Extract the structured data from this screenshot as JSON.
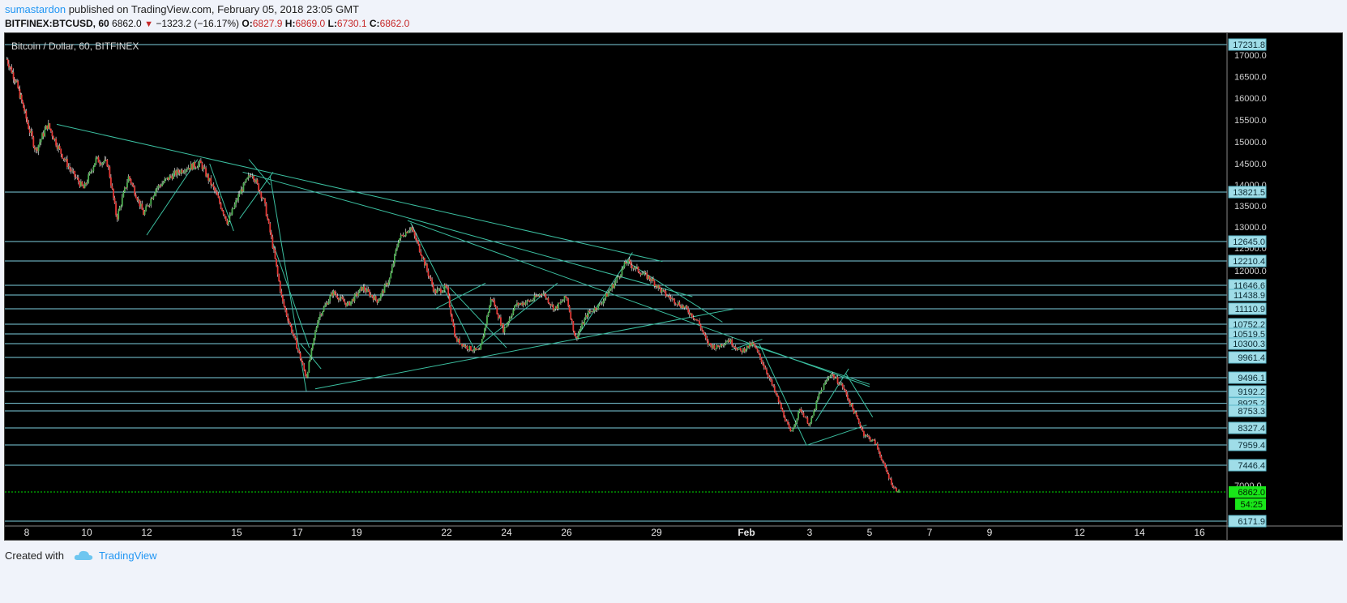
{
  "header": {
    "author": "sumastardon",
    "published_text": "published on TradingView.com, February 05, 2018 23:05 GMT",
    "symbol": "BITFINEX:BTCUSD, 60",
    "last": "6862.0",
    "change": "−1323.2 (−16.17%)",
    "o_label": "O:",
    "open": "6827.9",
    "h_label": "H:",
    "high": "6869.0",
    "l_label": "L:",
    "low": "6730.1",
    "c_label": "C:",
    "close": "6862.0"
  },
  "footer": {
    "created_with": "Created with",
    "brand": "TradingView"
  },
  "chart_data": {
    "type": "candlestick",
    "title": "Bitcoin / Dollar, 60, BITFINEX",
    "x_ticks": [
      {
        "day": 8,
        "label": "8"
      },
      {
        "day": 10,
        "label": "10"
      },
      {
        "day": 12,
        "label": "12"
      },
      {
        "day": 15,
        "label": "15"
      },
      {
        "day": 17,
        "label": "17"
      },
      {
        "day": 19,
        "label": "19"
      },
      {
        "day": 22,
        "label": "22"
      },
      {
        "day": 24,
        "label": "24"
      },
      {
        "day": 26,
        "label": "26"
      },
      {
        "day": 29,
        "label": "29"
      },
      {
        "day": 32,
        "label": "Feb"
      },
      {
        "day": 34,
        "label": "3"
      },
      {
        "day": 36,
        "label": "5"
      },
      {
        "day": 38,
        "label": "7"
      },
      {
        "day": 40,
        "label": "9"
      },
      {
        "day": 43,
        "label": "12"
      },
      {
        "day": 45,
        "label": "14"
      },
      {
        "day": 47,
        "label": "16"
      }
    ],
    "y_ticks": [
      17000,
      16500,
      16000,
      15500,
      15000,
      14500,
      14000,
      13500,
      13000,
      12500,
      12000,
      7000
    ],
    "horizontal_levels": [
      17231.8,
      13821.5,
      12645.0,
      12210.4,
      11646.6,
      11438.9,
      11110.9,
      10752.2,
      10519.5,
      10300.3,
      9961.4,
      9496.1,
      9192.2,
      8925.2,
      8753.3,
      8327.4,
      7959.4,
      7446.4,
      6171.9
    ],
    "current_price": {
      "value": 6862.0,
      "label": "6862.0",
      "countdown": "54:25"
    },
    "colors": {
      "up": "#4caf50",
      "down": "#e53935",
      "wick": "#ffffff",
      "level": "#7ecfe0",
      "trend": "#3bbfa0",
      "price": "#00e000",
      "background": "#000000"
    },
    "price_path": [
      [
        7.1,
        16900
      ],
      [
        7.5,
        16400
      ],
      [
        7.9,
        15700
      ],
      [
        8.3,
        14800
      ],
      [
        8.7,
        15400
      ],
      [
        9.1,
        14800
      ],
      [
        9.5,
        14300
      ],
      [
        9.9,
        13900
      ],
      [
        10.3,
        14600
      ],
      [
        10.7,
        14500
      ],
      [
        11.0,
        13200
      ],
      [
        11.4,
        14200
      ],
      [
        11.9,
        13300
      ],
      [
        12.3,
        13900
      ],
      [
        12.8,
        14200
      ],
      [
        13.3,
        14400
      ],
      [
        13.8,
        14500
      ],
      [
        14.3,
        13800
      ],
      [
        14.7,
        13100
      ],
      [
        15.1,
        13800
      ],
      [
        15.5,
        14300
      ],
      [
        15.9,
        13600
      ],
      [
        16.2,
        12500
      ],
      [
        16.5,
        11300
      ],
      [
        16.9,
        10400
      ],
      [
        17.3,
        9500
      ],
      [
        17.7,
        10900
      ],
      [
        18.2,
        11500
      ],
      [
        18.7,
        11200
      ],
      [
        19.2,
        11600
      ],
      [
        19.7,
        11300
      ],
      [
        20.1,
        11800
      ],
      [
        20.4,
        12700
      ],
      [
        20.8,
        13000
      ],
      [
        21.2,
        12300
      ],
      [
        21.6,
        11500
      ],
      [
        22.0,
        11600
      ],
      [
        22.3,
        10400
      ],
      [
        22.7,
        10200
      ],
      [
        23.1,
        10100
      ],
      [
        23.5,
        11400
      ],
      [
        23.9,
        10600
      ],
      [
        24.3,
        11200
      ],
      [
        24.8,
        11300
      ],
      [
        25.2,
        11500
      ],
      [
        25.6,
        11100
      ],
      [
        26.0,
        11400
      ],
      [
        26.3,
        10400
      ],
      [
        26.7,
        11000
      ],
      [
        27.1,
        11200
      ],
      [
        27.6,
        11700
      ],
      [
        28.0,
        12200
      ],
      [
        28.4,
        12000
      ],
      [
        28.8,
        11800
      ],
      [
        29.2,
        11500
      ],
      [
        29.6,
        11300
      ],
      [
        30.0,
        11100
      ],
      [
        30.4,
        10800
      ],
      [
        30.7,
        10300
      ],
      [
        31.0,
        10200
      ],
      [
        31.4,
        10400
      ],
      [
        31.8,
        10100
      ],
      [
        32.2,
        10300
      ],
      [
        32.6,
        9700
      ],
      [
        33.0,
        9000
      ],
      [
        33.4,
        8200
      ],
      [
        33.7,
        8800
      ],
      [
        34.0,
        8400
      ],
      [
        34.3,
        9100
      ],
      [
        34.7,
        9600
      ],
      [
        35.1,
        9300
      ],
      [
        35.5,
        8700
      ],
      [
        35.8,
        8200
      ],
      [
        36.2,
        8000
      ],
      [
        36.5,
        7400
      ],
      [
        36.8,
        6950
      ],
      [
        37.0,
        6862
      ]
    ],
    "trendlines": [
      [
        [
          9.0,
          15400
        ],
        [
          29.2,
          12200
        ]
      ],
      [
        [
          15.2,
          14300
        ],
        [
          30.2,
          11400
        ]
      ],
      [
        [
          20.7,
          13150
        ],
        [
          36.0,
          9300
        ]
      ],
      [
        [
          17.6,
          9250
        ],
        [
          31.6,
          11110
        ]
      ],
      [
        [
          12.0,
          12800
        ],
        [
          13.7,
          14600
        ]
      ],
      [
        [
          14.1,
          14500
        ],
        [
          14.9,
          12900
        ]
      ],
      [
        [
          15.1,
          13200
        ],
        [
          16.2,
          14300
        ]
      ],
      [
        [
          15.4,
          14600
        ],
        [
          16.1,
          14000
        ]
      ],
      [
        [
          16.1,
          14200
        ],
        [
          17.3,
          9200
        ]
      ],
      [
        [
          16.2,
          12600
        ],
        [
          17.4,
          10200
        ]
      ],
      [
        [
          17.1,
          10300
        ],
        [
          17.8,
          9700
        ]
      ],
      [
        [
          20.8,
          13100
        ],
        [
          22.9,
          10200
        ]
      ],
      [
        [
          21.6,
          11100
        ],
        [
          23.3,
          11700
        ]
      ],
      [
        [
          22.1,
          11600
        ],
        [
          24.0,
          10200
        ]
      ],
      [
        [
          23.0,
          10200
        ],
        [
          25.7,
          11700
        ]
      ],
      [
        [
          26.3,
          10400
        ],
        [
          28.2,
          12400
        ]
      ],
      [
        [
          28.0,
          12200
        ],
        [
          31.2,
          10800
        ]
      ],
      [
        [
          31.5,
          10150
        ],
        [
          32.5,
          10400
        ]
      ],
      [
        [
          32.4,
          10300
        ],
        [
          33.9,
          7950
        ]
      ],
      [
        [
          33.9,
          7950
        ],
        [
          35.9,
          8400
        ]
      ],
      [
        [
          34.2,
          8500
        ],
        [
          35.3,
          9700
        ]
      ],
      [
        [
          35.2,
          9600
        ],
        [
          36.1,
          8600
        ]
      ],
      [
        [
          32.0,
          10300
        ],
        [
          36.0,
          9350
        ]
      ]
    ]
  }
}
